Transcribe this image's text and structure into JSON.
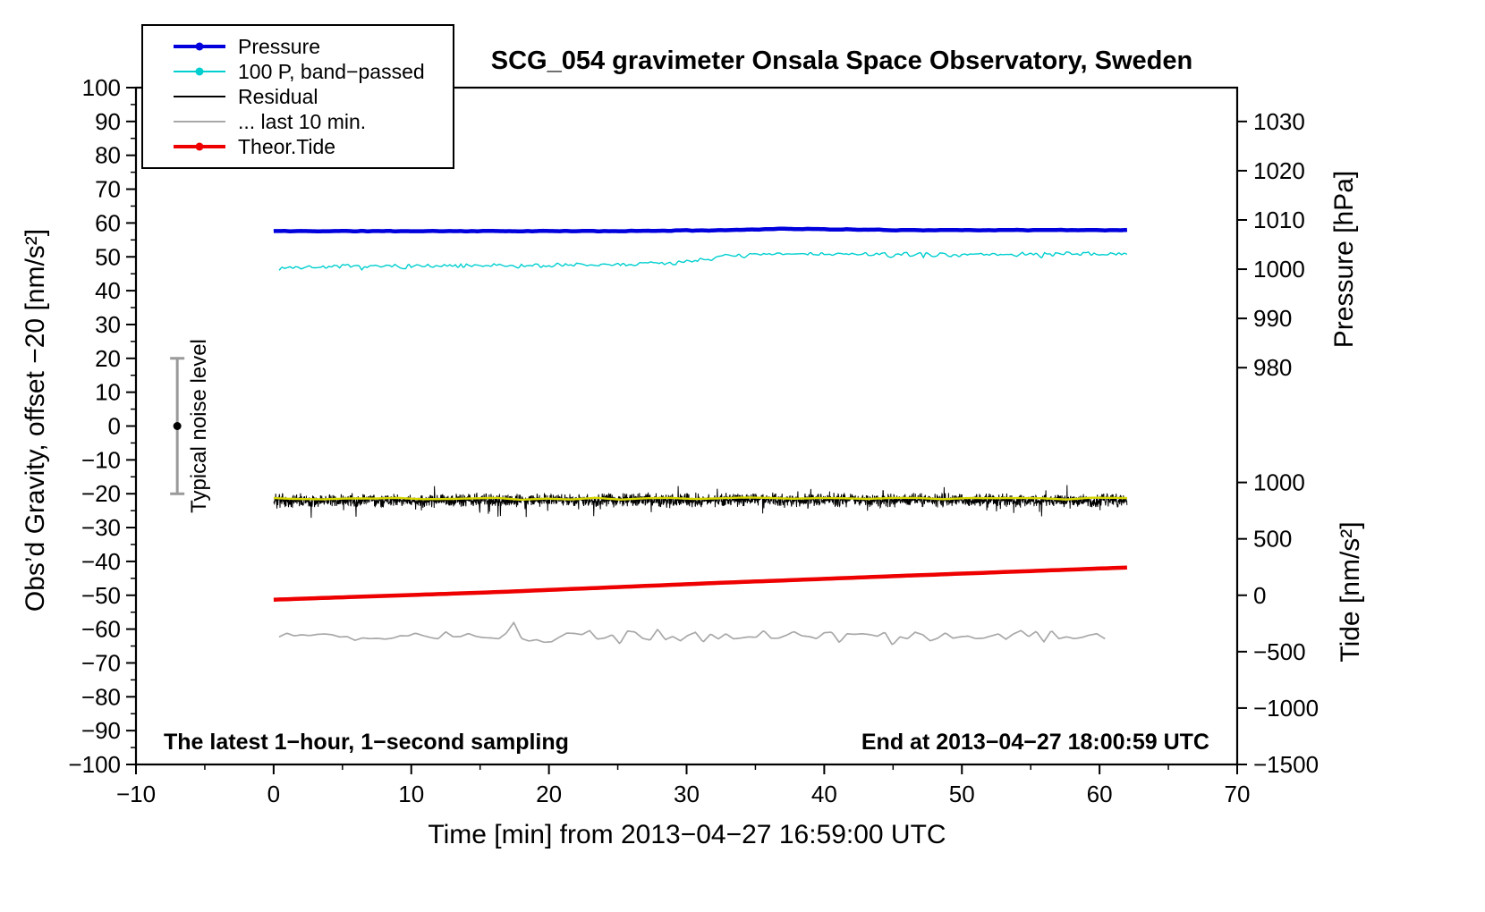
{
  "chart_data": {
    "type": "line",
    "title": "SCG_054 gravimeter Onsala Space Observatory, Sweden",
    "xlabel": "Time [min] from 2013−04−27 16:59:00 UTC",
    "ylabel_left": "Obs’d Gravity, offset −20 [nm/s²]",
    "ylabel_pressure": "Pressure [hPa]",
    "ylabel_tide": "Tide [nm/s²]",
    "x_axis": {
      "min": -10,
      "max": 70,
      "major_ticks": [
        -10,
        0,
        10,
        20,
        30,
        40,
        50,
        60,
        70
      ],
      "minor_step": 5
    },
    "y_axis_left": {
      "min": -100,
      "max": 100,
      "major_ticks": [
        100,
        90,
        80,
        70,
        60,
        50,
        40,
        30,
        20,
        10,
        0,
        -10,
        -20,
        -30,
        -40,
        -50,
        -60,
        -70,
        -80,
        -90,
        -100
      ],
      "minor_step": 5
    },
    "y_axis_pressure": {
      "ticks": [
        1030,
        1020,
        1010,
        1000,
        990,
        980
      ],
      "anchor_value": 1030,
      "anchor_left_units": 90,
      "left_units_per_unit": 1.455
    },
    "y_axis_tide": {
      "ticks": [
        1000,
        500,
        0,
        -500,
        -1000,
        -1500
      ],
      "anchor_value": 0,
      "anchor_left_units": -50,
      "left_units_per_unit": 0.033333
    },
    "noise_marker": {
      "x": -7,
      "center": 0,
      "half_range": 20,
      "cap_half_width": 8,
      "bar_color": "#9a9a9a",
      "dot_color": "#000000",
      "label": "Typical noise level"
    },
    "series": [
      {
        "id": "pressure",
        "label": "Pressure",
        "color": "#0000dd",
        "width": 4.5,
        "dot": true,
        "x_start": 0,
        "x_end": 62,
        "step": 0.1,
        "noise": 0.12,
        "noise_step": 0.4,
        "seed": 11,
        "spike": 0,
        "anchors": [
          [
            0,
            57.6
          ],
          [
            25,
            57.6
          ],
          [
            33,
            57.9
          ],
          [
            37,
            58.3
          ],
          [
            41,
            58.1
          ],
          [
            45,
            57.9
          ],
          [
            62,
            57.9
          ]
        ],
        "approx_pressure_hpa": 1007.8
      },
      {
        "id": "pressure-bandpassed",
        "label": "100 P, band−passed",
        "color": "#00cfcf",
        "width": 1.4,
        "dot": true,
        "x_start": 0.4,
        "x_end": 62,
        "step": 0.08,
        "noise": 0.85,
        "noise_step": 0.2,
        "seed": 7,
        "spike": 0.015,
        "anchors": [
          [
            0.4,
            46.8
          ],
          [
            8,
            47.2
          ],
          [
            16,
            47.3
          ],
          [
            24,
            47.6
          ],
          [
            29,
            48.2
          ],
          [
            33,
            50.3
          ],
          [
            38,
            50.9
          ],
          [
            45,
            50.6
          ],
          [
            53,
            50.7
          ],
          [
            62,
            50.9
          ]
        ]
      },
      {
        "id": "residual",
        "label": "Residual",
        "color": "#000000",
        "width": 1,
        "dot": false,
        "x_start": 0,
        "x_end": 62,
        "step": 0.022,
        "noise": 2.3,
        "noise_step": 0.022,
        "seed": 3,
        "spike": 0.04,
        "anchors": [
          [
            0,
            -22.1
          ],
          [
            20,
            -21.9
          ],
          [
            40,
            -21.8
          ],
          [
            62,
            -22.0
          ]
        ]
      },
      {
        "id": "residual-mean",
        "label": "",
        "color": "#d6d600",
        "width": 2.4,
        "dot": false,
        "x_start": 0,
        "x_end": 62,
        "step": 0.2,
        "noise": 0.45,
        "noise_step": 1.8,
        "seed": 5,
        "spike": 0,
        "anchors": [
          [
            0,
            -21.5
          ],
          [
            62,
            -21.3
          ]
        ]
      },
      {
        "id": "residual-last-10-min",
        "label": "... last 10 min.",
        "color": "#a8a8a8",
        "width": 1.7,
        "dot": false,
        "x_start": 0.4,
        "x_end": 60.4,
        "step": 0.12,
        "noise": 2.2,
        "noise_step": 0.55,
        "seed": 9,
        "spike": 0.05,
        "anchors": [
          [
            0.4,
            -62.4
          ],
          [
            60.4,
            -62.2
          ]
        ]
      },
      {
        "id": "theor-tide",
        "label": "Theor.Tide",
        "color": "#ee0000",
        "width": 4.5,
        "dot": true,
        "x_start": 0,
        "x_end": 62,
        "step": 0.5,
        "noise": 0,
        "noise_step": 1,
        "seed": 2,
        "spike": 0,
        "anchors": [
          [
            0,
            -51.3
          ],
          [
            16,
            -49.1
          ],
          [
            32,
            -46.4
          ],
          [
            48,
            -43.9
          ],
          [
            62,
            -41.8
          ]
        ]
      }
    ],
    "draw_order": [
      "pressure-bandpassed",
      "residual-last-10-min",
      "theor-tide",
      "residual",
      "residual-mean",
      "pressure"
    ],
    "legend_order": [
      "pressure",
      "pressure-bandpassed",
      "residual",
      "residual-last-10-min",
      "theor-tide"
    ],
    "notes": {
      "sampling": "The latest 1−hour, 1−second sampling",
      "end_time": "End at 2013−04−27 18:00:59 UTC"
    }
  }
}
